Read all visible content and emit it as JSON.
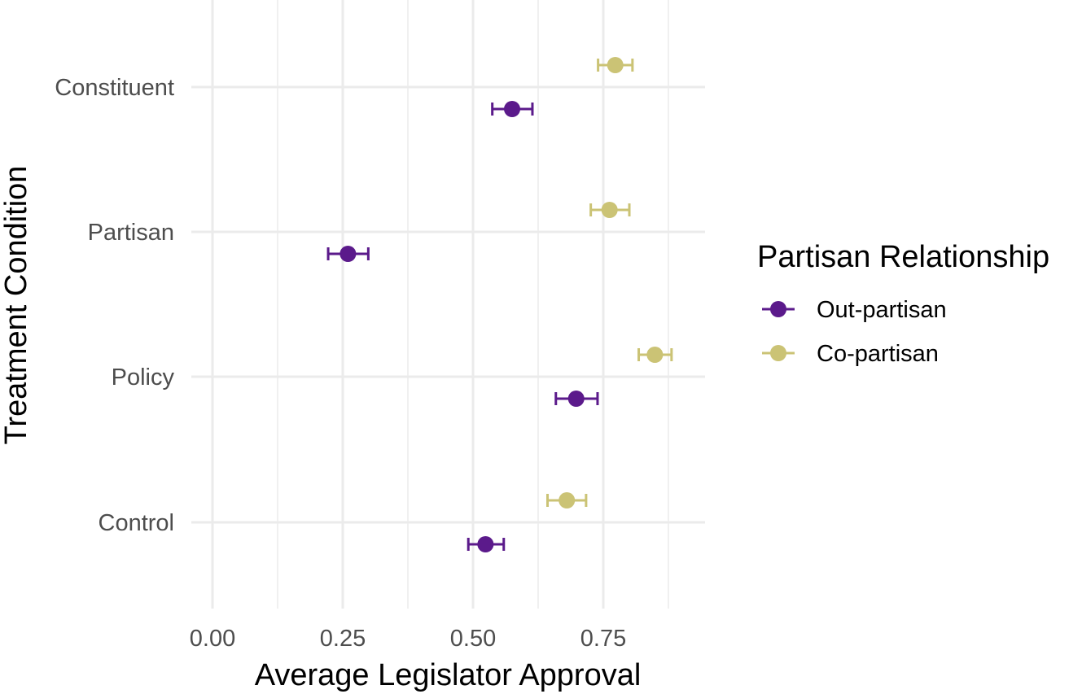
{
  "chart_data": {
    "type": "scatter",
    "subtype": "dot-and-whisker",
    "title": "",
    "xlabel": "Average Legislator Approval",
    "ylabel": "Treatment Condition",
    "xlim": [
      -0.03,
      0.945
    ],
    "x_ticks": [
      0.0,
      0.25,
      0.5,
      0.75
    ],
    "x_tick_labels": [
      "0.00",
      "0.25",
      "0.50",
      "0.75"
    ],
    "categories": [
      "Constituent",
      "Partisan",
      "Policy",
      "Control"
    ],
    "legend": {
      "title": "Partisan Relationship",
      "position": "right"
    },
    "series": [
      {
        "name": "Out-partisan",
        "color": "#5b1a8b",
        "values": [
          0.575,
          0.26,
          0.698,
          0.524
        ],
        "ci_low": [
          0.537,
          0.222,
          0.659,
          0.491
        ],
        "ci_high": [
          0.614,
          0.299,
          0.739,
          0.559
        ]
      },
      {
        "name": "Co-partisan",
        "color": "#cbc375",
        "values": [
          0.773,
          0.762,
          0.849,
          0.68
        ],
        "ci_low": [
          0.74,
          0.726,
          0.818,
          0.643
        ],
        "ci_high": [
          0.806,
          0.8,
          0.881,
          0.717
        ]
      }
    ],
    "grid": true
  }
}
